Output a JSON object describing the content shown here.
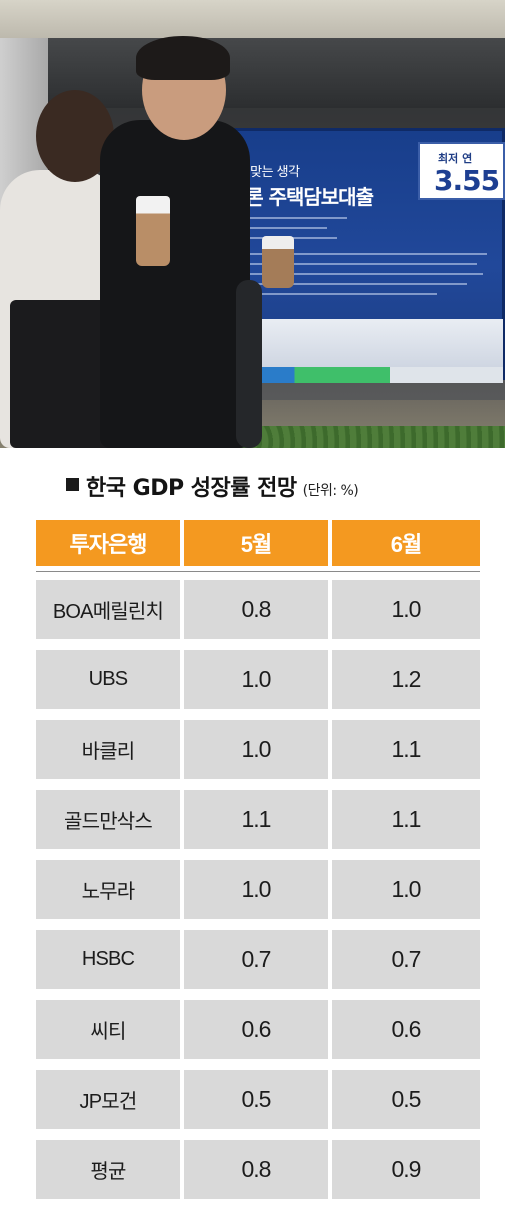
{
  "photo": {
    "billboard_tag": "마련에 딱 맞는 생각",
    "billboard_headline": "스트홈론 주택담보대출",
    "rate_label": "최저 연",
    "rate_value": "3.55"
  },
  "header": {
    "title": "한국 GDP 성장률 전망",
    "unit": "(단위: %)"
  },
  "table": {
    "columns": [
      "투자은행",
      "5월",
      "6월"
    ],
    "rows": [
      {
        "bank": "BOA메릴린치",
        "may": "0.8",
        "june": "1.0"
      },
      {
        "bank": "UBS",
        "may": "1.0",
        "june": "1.2"
      },
      {
        "bank": "바클리",
        "may": "1.0",
        "june": "1.1"
      },
      {
        "bank": "골드만삭스",
        "may": "1.1",
        "june": "1.1"
      },
      {
        "bank": "노무라",
        "may": "1.0",
        "june": "1.0"
      },
      {
        "bank": "HSBC",
        "may": "0.7",
        "june": "0.7"
      },
      {
        "bank": "씨티",
        "may": "0.6",
        "june": "0.6"
      },
      {
        "bank": "JP모건",
        "may": "0.5",
        "june": "0.5"
      },
      {
        "bank": "평균",
        "may": "0.8",
        "june": "0.9"
      }
    ]
  },
  "colors": {
    "header_bg": "#f49920",
    "cell_bg": "#d9d9d9"
  }
}
